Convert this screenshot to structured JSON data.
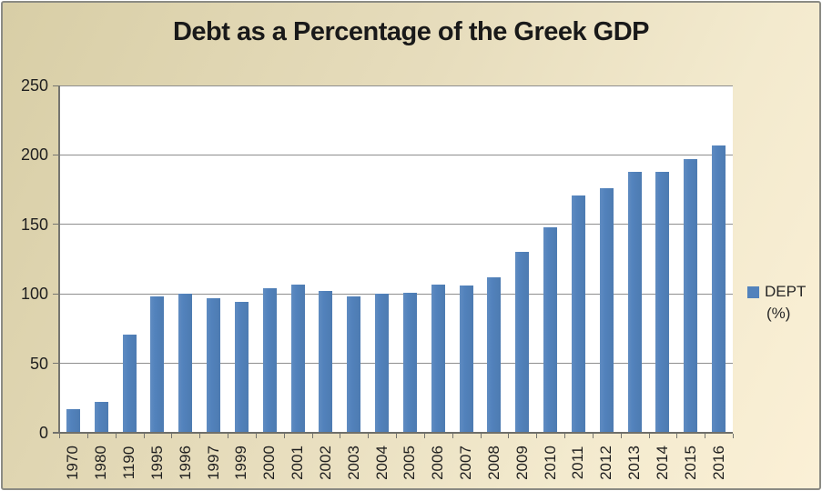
{
  "chart_data": {
    "type": "bar",
    "title": "Debt as a Percentage of the Greek GDP",
    "categories": [
      "1970",
      "1980",
      "1190",
      "1995",
      "1996",
      "1997",
      "1999",
      "2000",
      "2001",
      "2002",
      "2003",
      "2004",
      "2005",
      "2006",
      "2007",
      "2008",
      "2009",
      "2010",
      "2011",
      "2012",
      "2013",
      "2014",
      "2015",
      "2016"
    ],
    "values": [
      17,
      22,
      71,
      98,
      100,
      97,
      94,
      104,
      107,
      102,
      98,
      100,
      101,
      107,
      106,
      112,
      130,
      148,
      171,
      176,
      188,
      188,
      197,
      207
    ],
    "legend_entry": "DEPT (%)",
    "legend_label": "DEPT",
    "legend_unit": "(%)",
    "legend_position": "right",
    "xlabel": "",
    "ylabel": "",
    "ylim": [
      0,
      250
    ],
    "yticks": [
      0,
      50,
      100,
      150,
      200,
      250
    ],
    "grid": true,
    "x_label_rotation": 90,
    "colors": {
      "bar": "#5282BC",
      "background_gradient_start": "#D8CEA6",
      "background_gradient_end": "#FBF0D6",
      "plot_background": "#FFFFFF",
      "gridline": "#8E8E8E",
      "axis": "#757570",
      "text": "#1F1F1F"
    }
  }
}
